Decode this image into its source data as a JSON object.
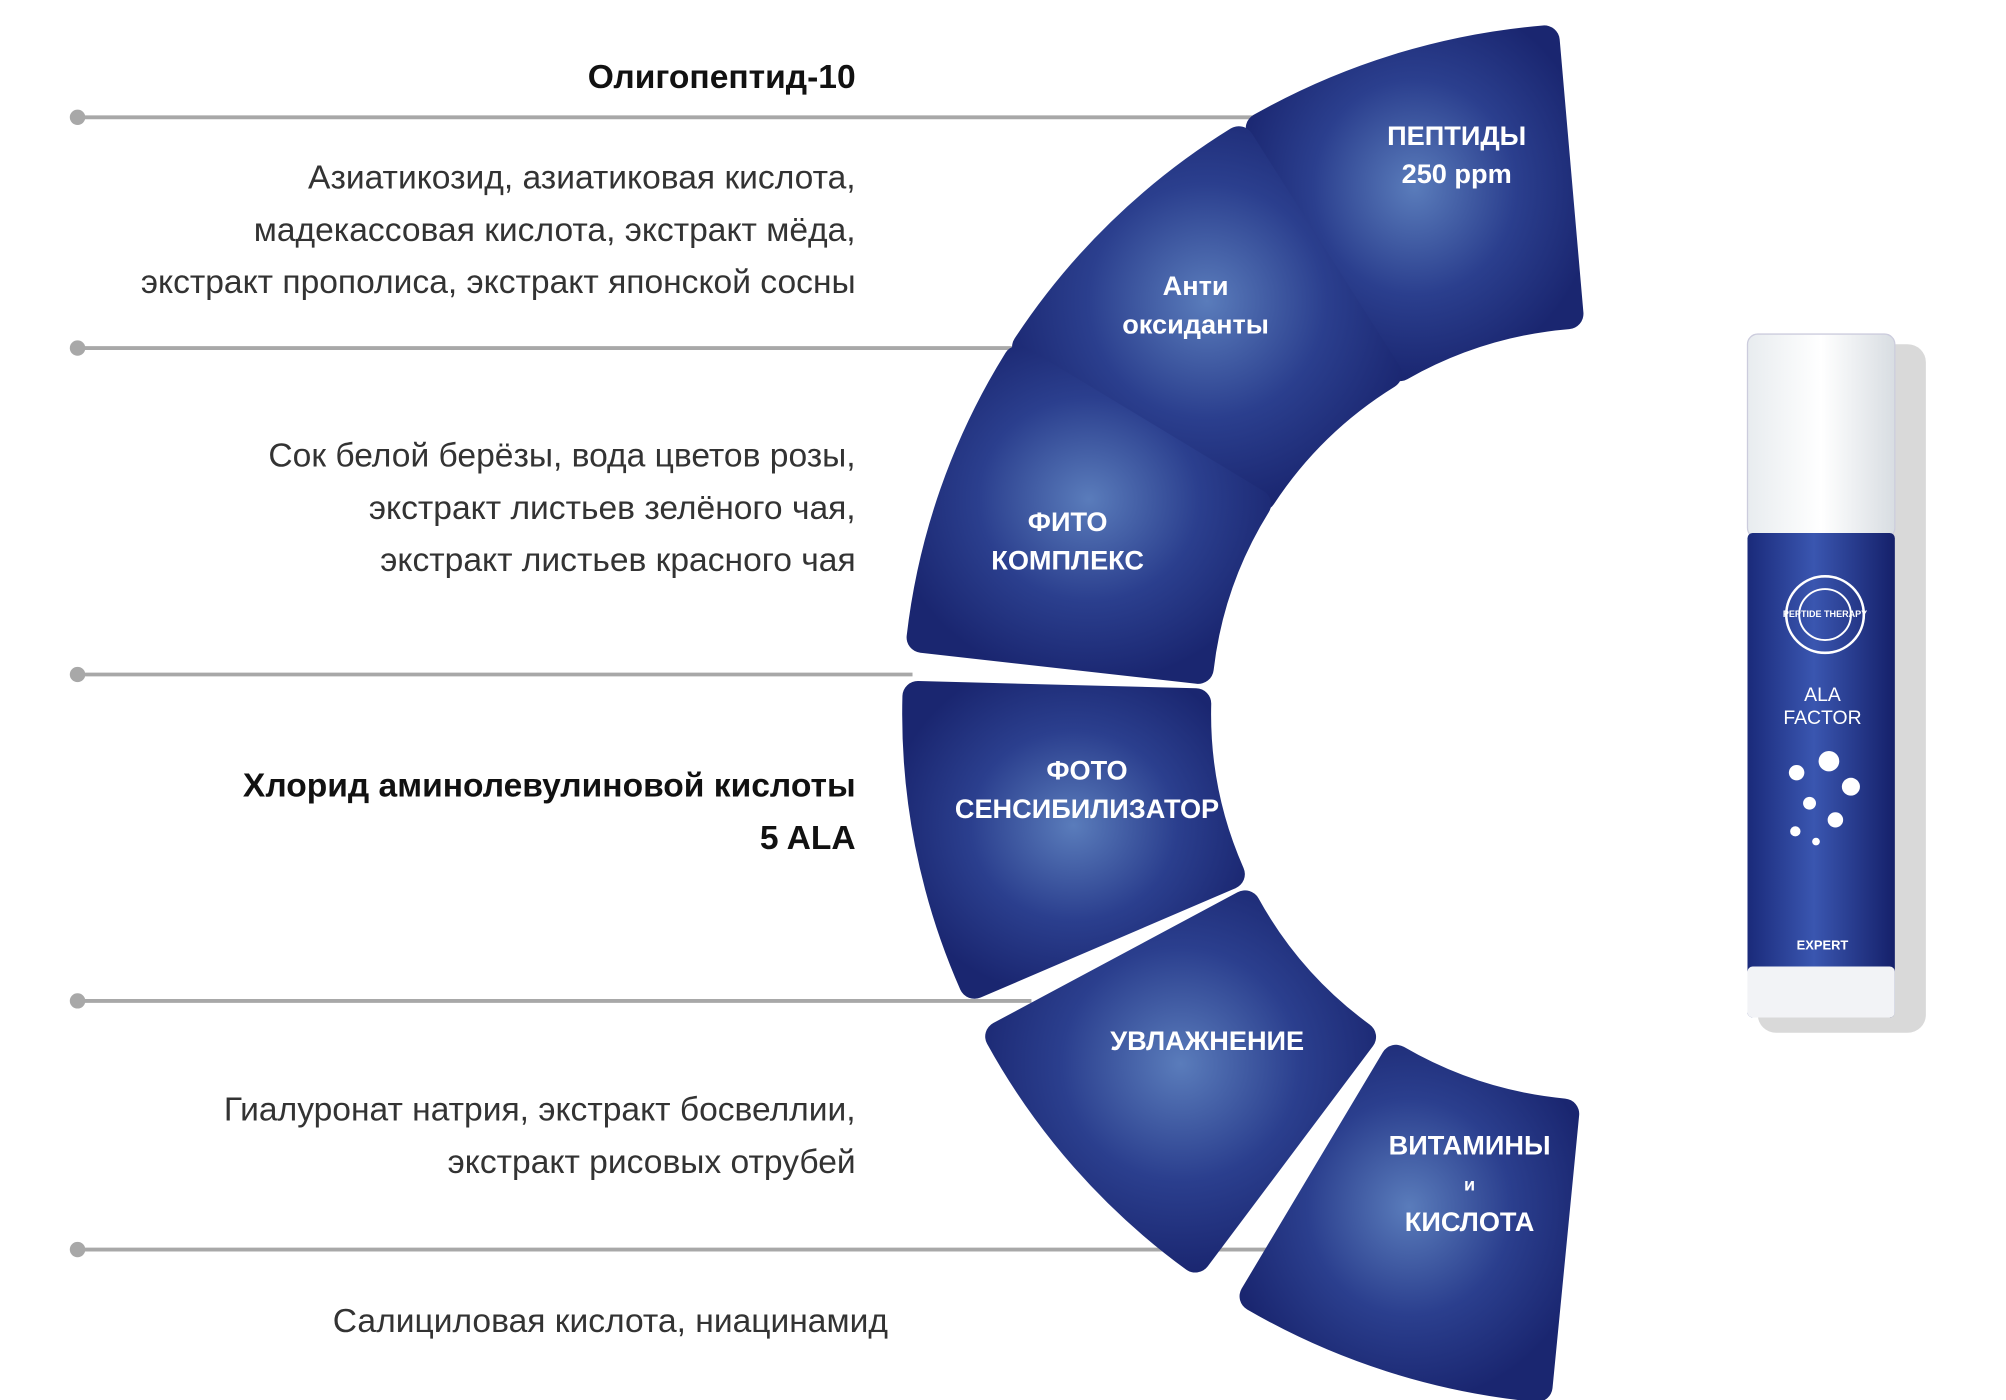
{
  "ingredients": [
    {
      "lines": [
        "Олигопептид-10"
      ],
      "bold": true
    },
    {
      "lines": [
        "Азиатикозид, азиатиковая кислота,",
        "мадекассовая кислота, экстракт мёда,",
        "экстракт прополиса, экстракт японской сосны"
      ],
      "bold": false
    },
    {
      "lines": [
        "Сок белой берёзы, вода цветов розы,",
        "экстракт листьев зелёного чая,",
        "экстракт листьев красного чая"
      ],
      "bold": false
    },
    {
      "lines": [
        "Хлорид аминолевулиновой кислоты",
        "5 ALA"
      ],
      "bold": true
    },
    {
      "lines": [
        "Гиалуронат натрия, экстракт босвеллии,",
        "экстракт рисовых отрубей"
      ],
      "bold": false
    },
    {
      "lines": [
        "Салициловая кислота, ниацинамид"
      ],
      "bold": false
    }
  ],
  "segments": [
    {
      "lines": [
        "ПЕПТИДЫ",
        "250 ppm"
      ]
    },
    {
      "lines": [
        "Анти",
        "оксиданты"
      ]
    },
    {
      "lines": [
        "ФИТО",
        "КОМПЛЕКС"
      ]
    },
    {
      "lines": [
        "ФОТО",
        "СЕНСИБИЛИЗАТОР"
      ]
    },
    {
      "lines": [
        "УВЛАЖНЕНИЕ"
      ]
    },
    {
      "lines": [
        "ВИТАМИНЫ",
        "и",
        "КИСЛОТА"
      ]
    }
  ],
  "product": {
    "brand": "PEPTIDE THERAPY",
    "name": [
      "ALA",
      "FACTOR"
    ],
    "line": "EXPERT"
  }
}
